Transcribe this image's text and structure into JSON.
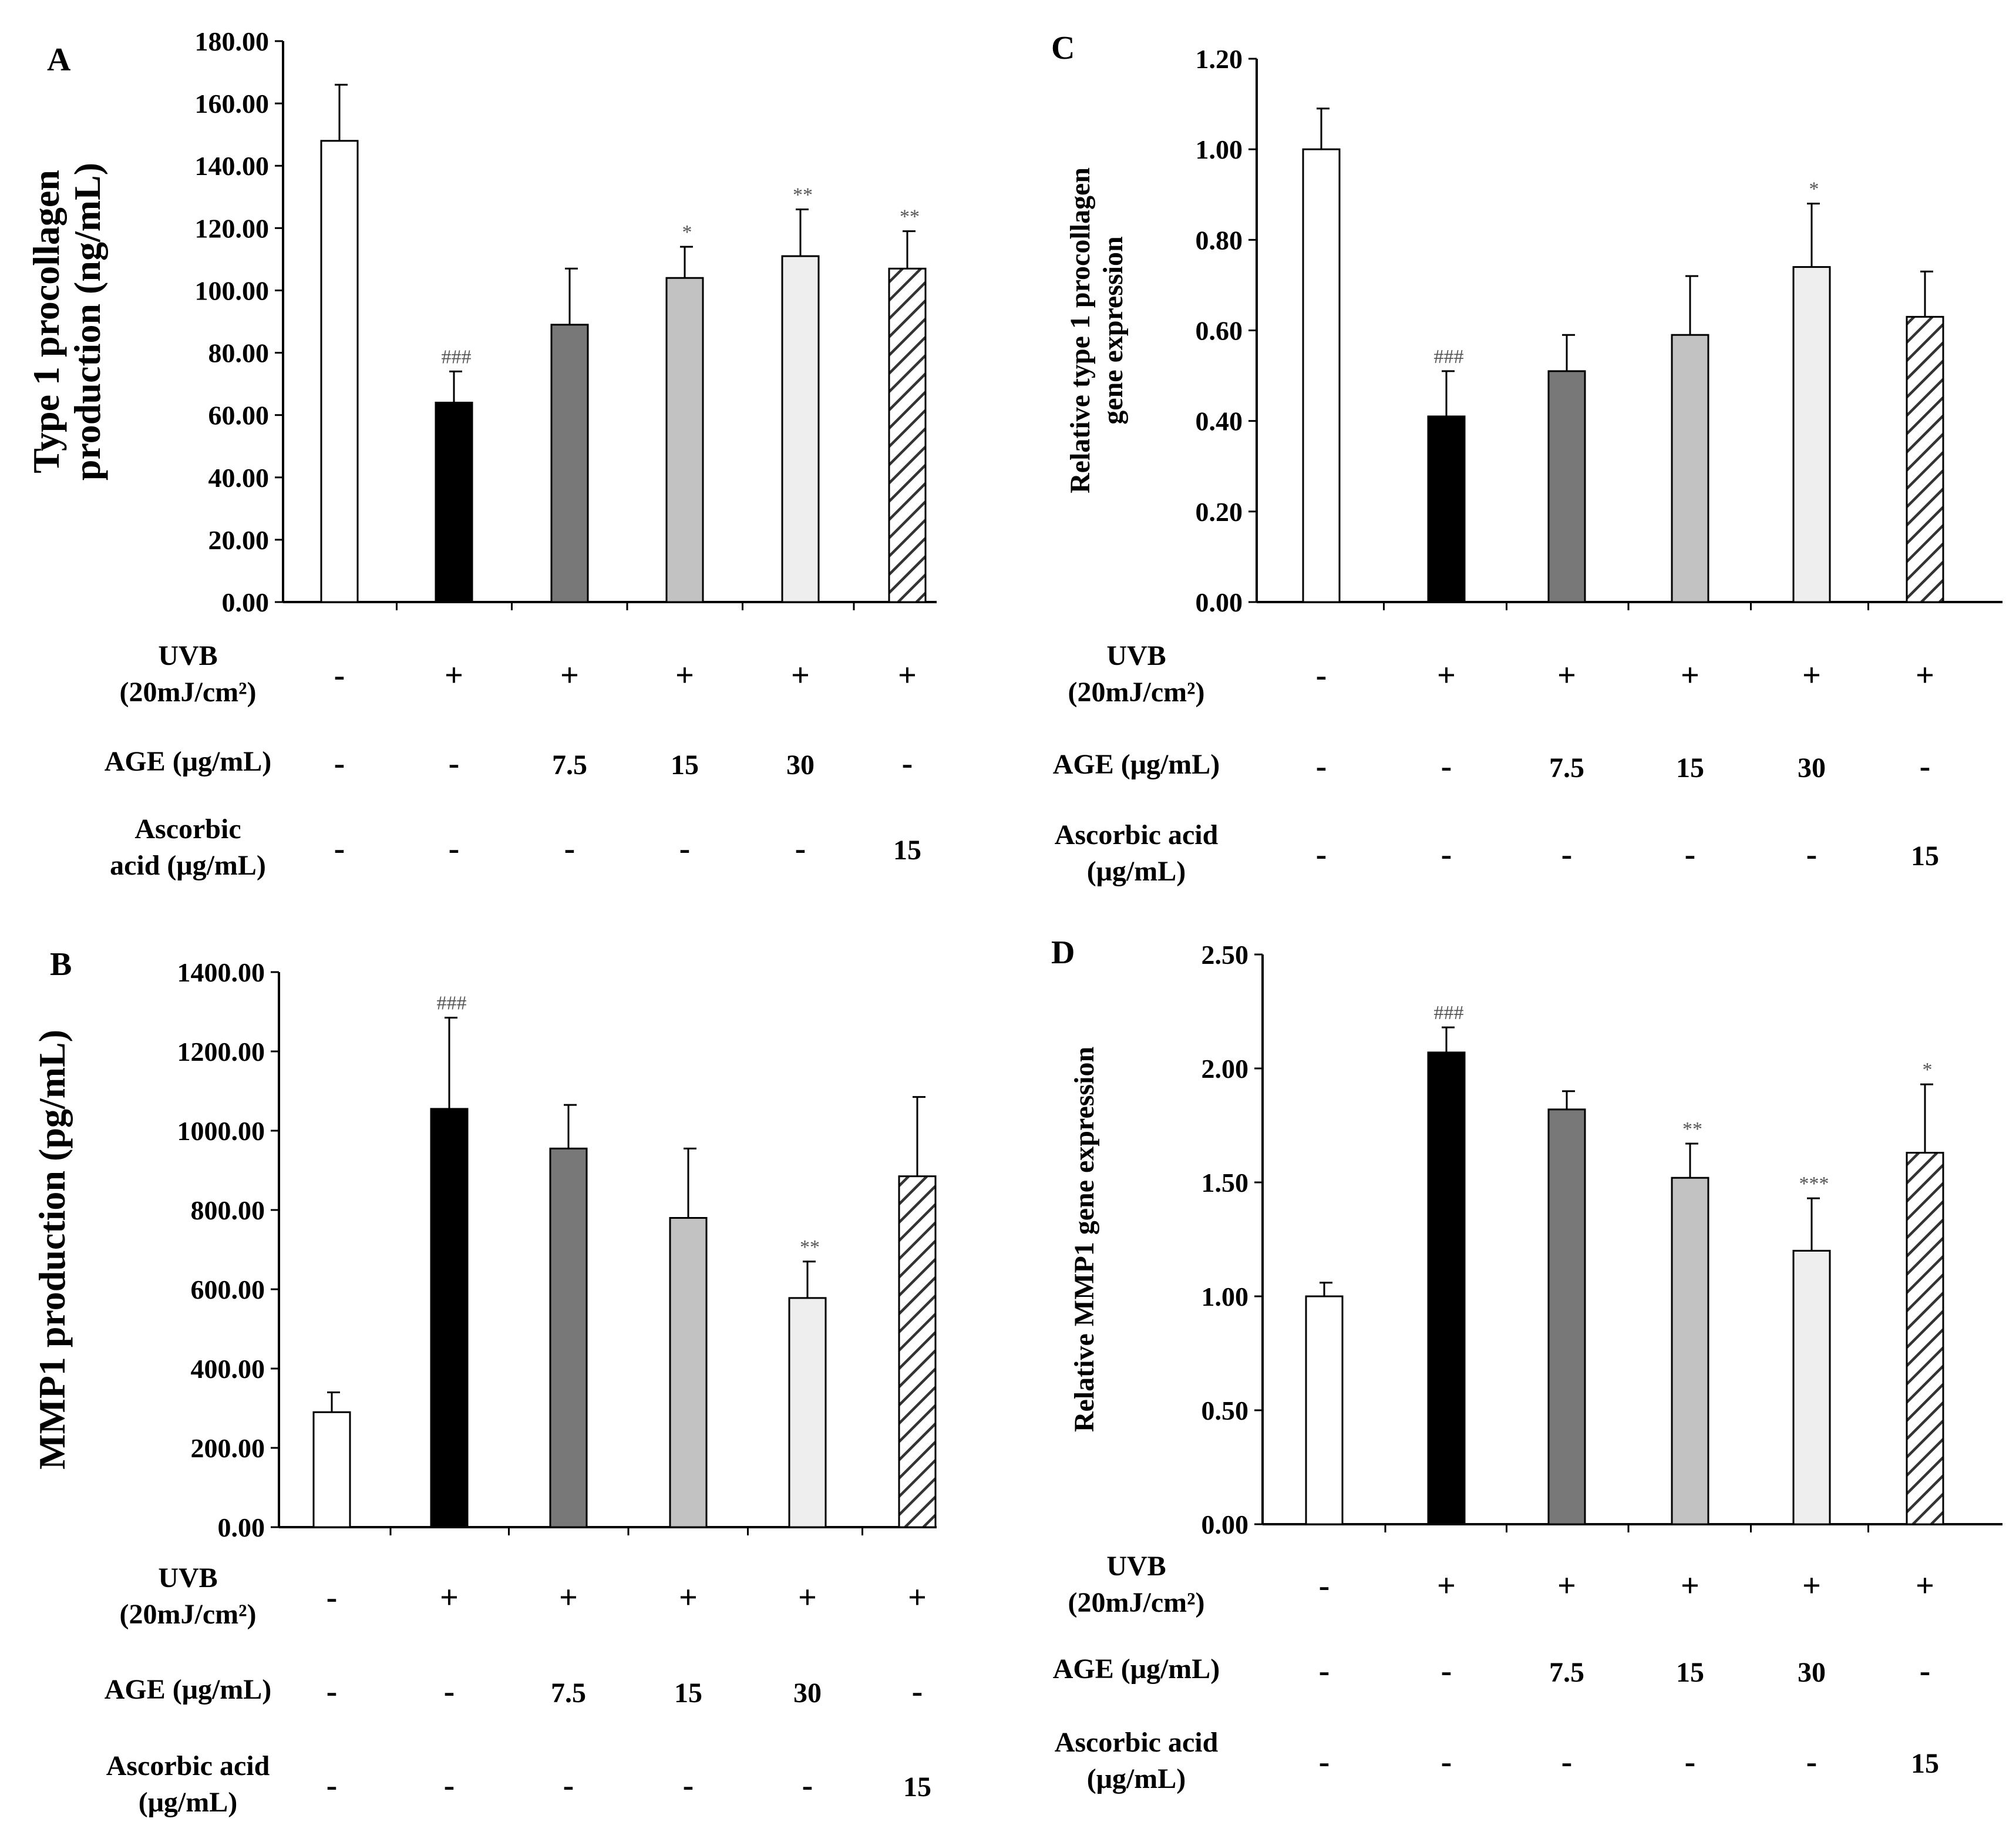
{
  "figure": {
    "palette": {
      "open": "#ffffff",
      "black": "#000000",
      "dark_gray": "#787878",
      "mid_gray": "#c2c2c2",
      "light_gray": "#eeeeee",
      "hatch_line": "#333333",
      "stroke": "#000000",
      "annotation_color": "#555555"
    },
    "condition_rows": [
      {
        "label_lines": [
          "UVB",
          "(20mJ/cm²)"
        ],
        "values": [
          "-",
          "+",
          "+",
          "+",
          "+",
          "+"
        ]
      },
      {
        "label_lines": [
          "AGE (μg/mL)"
        ],
        "values": [
          "-",
          "-",
          "7.5",
          "15",
          "30",
          "-"
        ]
      },
      {
        "label_lines": [
          "Ascorbic",
          "acid (μg/mL)"
        ],
        "values": [
          "-",
          "-",
          "-",
          "-",
          "-",
          "15"
        ]
      }
    ]
  },
  "chart_data": [
    {
      "panel": "A",
      "type": "bar",
      "ylabel_lines": [
        "Type 1 procollagen",
        "production (ng/mL)"
      ],
      "ylim": [
        0,
        180
      ],
      "yticks": [
        "0.00",
        "20.00",
        "40.00",
        "60.00",
        "80.00",
        "100.00",
        "120.00",
        "140.00",
        "160.00",
        "180.00"
      ],
      "values": [
        148,
        64,
        89,
        104,
        111,
        107
      ],
      "errors": [
        18,
        10,
        18,
        10,
        15,
        12
      ],
      "fills": [
        "open",
        "black",
        "dark_gray",
        "mid_gray",
        "light_gray",
        "hatch"
      ],
      "annotations": [
        "",
        "###",
        "",
        "*",
        "**",
        "**"
      ],
      "condition_rows": [
        {
          "label_lines": [
            "UVB",
            "(20mJ/cm²)"
          ],
          "values": [
            "-",
            "+",
            "+",
            "+",
            "+",
            "+"
          ]
        },
        {
          "label_lines": [
            "AGE (μg/mL)"
          ],
          "values": [
            "-",
            "-",
            "7.5",
            "15",
            "30",
            "-"
          ]
        },
        {
          "label_lines": [
            "Ascorbic",
            "acid (μg/mL)"
          ],
          "values": [
            "-",
            "-",
            "-",
            "-",
            "-",
            "15"
          ]
        }
      ]
    },
    {
      "panel": "B",
      "type": "bar",
      "ylabel_lines": [
        "MMP1 production (pg/mL)"
      ],
      "ylim": [
        0,
        1400
      ],
      "yticks": [
        "0.00",
        "200.00",
        "400.00",
        "600.00",
        "800.00",
        "1000.00",
        "1200.00",
        "1400.00"
      ],
      "values": [
        290,
        1055,
        955,
        780,
        578,
        885
      ],
      "errors": [
        50,
        230,
        110,
        175,
        92,
        200
      ],
      "fills": [
        "open",
        "black",
        "dark_gray",
        "mid_gray",
        "light_gray",
        "hatch"
      ],
      "annotations": [
        "",
        "###",
        "",
        "",
        "**",
        ""
      ],
      "condition_rows": [
        {
          "label_lines": [
            "UVB",
            "(20mJ/cm²)"
          ],
          "values": [
            "-",
            "+",
            "+",
            "+",
            "+",
            "+"
          ]
        },
        {
          "label_lines": [
            "AGE (μg/mL)"
          ],
          "values": [
            "-",
            "-",
            "7.5",
            "15",
            "30",
            "-"
          ]
        },
        {
          "label_lines": [
            "Ascorbic acid",
            "(μg/mL)"
          ],
          "values": [
            "-",
            "-",
            "-",
            "-",
            "-",
            "15"
          ]
        }
      ]
    },
    {
      "panel": "C",
      "type": "bar",
      "ylabel_lines": [
        "Relative type 1 procollagen",
        "gene expression"
      ],
      "ylim": [
        0,
        1.2
      ],
      "yticks": [
        "0.00",
        "0.20",
        "0.40",
        "0.60",
        "0.80",
        "1.00",
        "1.20"
      ],
      "values": [
        1.0,
        0.41,
        0.51,
        0.59,
        0.74,
        0.63
      ],
      "errors": [
        0.09,
        0.1,
        0.08,
        0.13,
        0.14,
        0.1
      ],
      "fills": [
        "open",
        "black",
        "dark_gray",
        "mid_gray",
        "light_gray",
        "hatch"
      ],
      "annotations": [
        "",
        "###",
        "",
        "",
        "*",
        ""
      ],
      "condition_rows": [
        {
          "label_lines": [
            "UVB",
            "(20mJ/cm²)"
          ],
          "values": [
            "-",
            "+",
            "+",
            "+",
            "+",
            "+"
          ]
        },
        {
          "label_lines": [
            "AGE (μg/mL)"
          ],
          "values": [
            "-",
            "-",
            "7.5",
            "15",
            "30",
            "-"
          ]
        },
        {
          "label_lines": [
            "Ascorbic acid",
            "(μg/mL)"
          ],
          "values": [
            "-",
            "-",
            "-",
            "-",
            "-",
            "15"
          ]
        }
      ]
    },
    {
      "panel": "D",
      "type": "bar",
      "ylabel_lines": [
        "Relative MMP1 gene expression"
      ],
      "ylim": [
        0,
        2.5
      ],
      "yticks": [
        "0.00",
        "0.50",
        "1.00",
        "1.50",
        "2.00",
        "2.50"
      ],
      "values": [
        1.0,
        2.07,
        1.82,
        1.52,
        1.2,
        1.63
      ],
      "errors": [
        0.06,
        0.11,
        0.08,
        0.15,
        0.23,
        0.3
      ],
      "fills": [
        "open",
        "black",
        "dark_gray",
        "mid_gray",
        "light_gray",
        "hatch"
      ],
      "annotations": [
        "",
        "###",
        "",
        "**",
        "***",
        "*"
      ],
      "condition_rows": [
        {
          "label_lines": [
            "UVB",
            "(20mJ/cm²)"
          ],
          "values": [
            "-",
            "+",
            "+",
            "+",
            "+",
            "+"
          ]
        },
        {
          "label_lines": [
            "AGE (μg/mL)"
          ],
          "values": [
            "-",
            "-",
            "7.5",
            "15",
            "30",
            "-"
          ]
        },
        {
          "label_lines": [
            "Ascorbic acid",
            "(μg/mL)"
          ],
          "values": [
            "-",
            "-",
            "-",
            "-",
            "-",
            "15"
          ]
        }
      ]
    }
  ]
}
